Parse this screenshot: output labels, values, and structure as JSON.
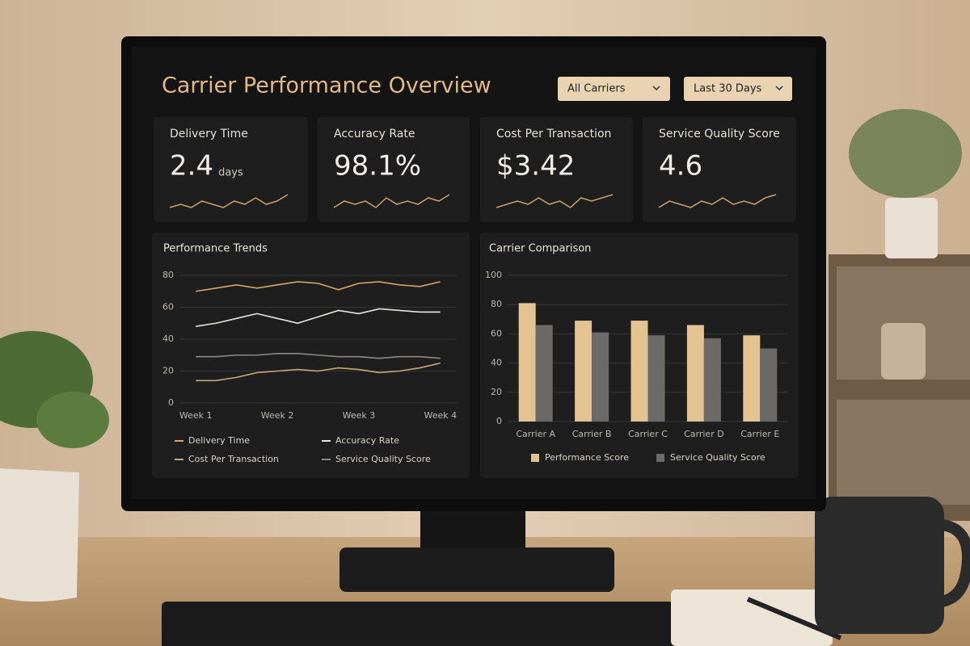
{
  "header": {
    "title": "Carrier Performance Overview",
    "filters": [
      "All Carriers",
      "Last 30 Days"
    ]
  },
  "kpis": [
    {
      "label": "Delivery Time",
      "value": "2.4",
      "unit": "days",
      "trend": [
        3,
        4,
        3,
        5,
        4,
        3,
        5,
        4,
        6,
        4,
        5,
        7
      ]
    },
    {
      "label": "Accuracy Rate",
      "value": "98.1%",
      "trend": [
        3,
        5,
        4,
        5,
        3,
        6,
        4,
        5,
        4,
        6,
        5,
        7
      ]
    },
    {
      "label": "Cost Per Transaction",
      "value": "$3.42",
      "trend": [
        3,
        4,
        5,
        4,
        6,
        4,
        5,
        3,
        6,
        5,
        6,
        7
      ]
    },
    {
      "label": "Service Quality Score",
      "value": "4.6",
      "trend": [
        3,
        5,
        4,
        3,
        5,
        4,
        6,
        4,
        5,
        4,
        6,
        7
      ]
    }
  ],
  "chart_data": [
    {
      "type": "line",
      "title": "Performance Trends",
      "x": [
        1,
        1.25,
        1.5,
        1.75,
        2,
        2.25,
        2.5,
        2.75,
        3,
        3.25,
        3.5,
        3.75,
        4
      ],
      "xlim": [
        0.8,
        4.2
      ],
      "xticks": [
        {
          "value": 1,
          "label": "Week 1"
        },
        {
          "value": 2,
          "label": "Week 2"
        },
        {
          "value": 3,
          "label": "Week 3"
        },
        {
          "value": 4,
          "label": "Week 4"
        }
      ],
      "ylim": [
        0,
        80
      ],
      "yticks": [
        0,
        20,
        40,
        60,
        80
      ],
      "grid": true,
      "series": [
        {
          "name": "Delivery Time",
          "color": "#d9a46a",
          "values": [
            70,
            72,
            74,
            72,
            74,
            76,
            75,
            71,
            75,
            76,
            74,
            73,
            76
          ]
        },
        {
          "name": "Accuracy Rate",
          "color": "#ece6da",
          "values": [
            48,
            50,
            53,
            56,
            53,
            50,
            54,
            58,
            56,
            59,
            58,
            57,
            57
          ]
        },
        {
          "name": "Cost Per Transaction",
          "color": "#c9a77a",
          "values": [
            14,
            14,
            16,
            19,
            20,
            21,
            20,
            22,
            21,
            19,
            20,
            22,
            25
          ]
        },
        {
          "name": "Service Quality Score",
          "color": "#8d8a84",
          "values": [
            29,
            29,
            30,
            30,
            31,
            31,
            30,
            29,
            29,
            28,
            29,
            29,
            28
          ]
        }
      ]
    },
    {
      "type": "bar",
      "title": "Carrier Comparison",
      "categories": [
        "Carrier A",
        "Carrier B",
        "Carrier C",
        "Carrier D",
        "Carrier E"
      ],
      "ylim": [
        0,
        100
      ],
      "yticks": [
        0,
        20,
        40,
        60,
        80,
        100
      ],
      "grid": true,
      "series": [
        {
          "name": "Performance Score",
          "color": "#e4c393",
          "values": [
            81,
            69,
            69,
            66,
            59
          ]
        },
        {
          "name": "Service Quality Score",
          "color": "#6b6a67",
          "values": [
            66,
            61,
            59,
            57,
            50
          ]
        }
      ]
    }
  ]
}
